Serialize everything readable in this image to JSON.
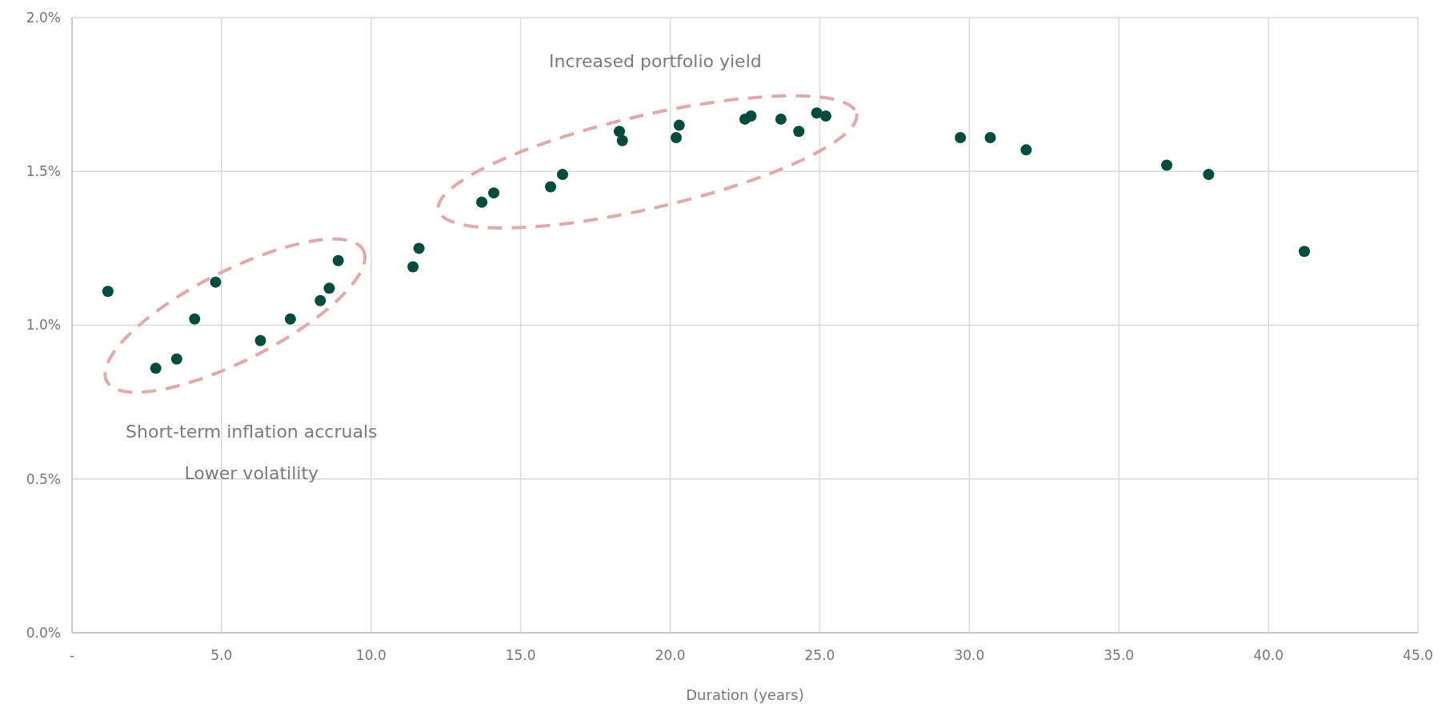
{
  "chart_data": {
    "type": "scatter",
    "xlabel": "Duration (years)",
    "xlim": [
      0,
      45
    ],
    "xticks": [
      {
        "value": 0,
        "label": "-"
      },
      {
        "value": 5,
        "label": "5.0"
      },
      {
        "value": 10,
        "label": "10.0"
      },
      {
        "value": 15,
        "label": "15.0"
      },
      {
        "value": 20,
        "label": "20.0"
      },
      {
        "value": 25,
        "label": "25.0"
      },
      {
        "value": 30,
        "label": "30.0"
      },
      {
        "value": 35,
        "label": "35.0"
      },
      {
        "value": 40,
        "label": "40.0"
      },
      {
        "value": 45,
        "label": "45.0"
      }
    ],
    "ylim": [
      0,
      2
    ],
    "yticks": [
      {
        "value": 0,
        "label": "0.0%"
      },
      {
        "value": 0.5,
        "label": "0.5%"
      },
      {
        "value": 1,
        "label": "1.0%"
      },
      {
        "value": 1.5,
        "label": "1.5%"
      },
      {
        "value": 2,
        "label": "2.0%"
      }
    ],
    "grid": true,
    "marker": "circle",
    "annotations": [
      "Increased portfolio yield",
      "Short-term inflation accruals",
      "Lower volatility"
    ],
    "series": [
      {
        "color": "#004d3d",
        "x": [
          1.2,
          2.8,
          3.5,
          4.1,
          4.8,
          6.3,
          7.3,
          8.3,
          8.6,
          8.9,
          11.4,
          11.6,
          13.7,
          14.1,
          16.0,
          16.4,
          18.3,
          18.4,
          20.2,
          20.3,
          22.5,
          22.7,
          23.7,
          24.3,
          24.9,
          25.2,
          29.7,
          30.7,
          31.9,
          36.6,
          38.0,
          41.2
        ],
        "values": [
          1.11,
          0.86,
          0.89,
          1.02,
          1.14,
          0.95,
          1.02,
          1.08,
          1.12,
          1.21,
          1.19,
          1.25,
          1.4,
          1.43,
          1.45,
          1.49,
          1.63,
          1.6,
          1.61,
          1.65,
          1.67,
          1.68,
          1.67,
          1.63,
          1.69,
          1.68,
          1.61,
          1.61,
          1.57,
          1.52,
          1.49,
          1.24
        ]
      }
    ]
  }
}
